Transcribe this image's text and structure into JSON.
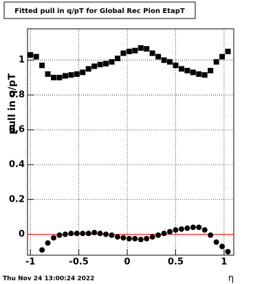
{
  "chart_data": {
    "type": "scatter",
    "title": "Fitted pull in q/pT for Global Rec Pion EtapT",
    "x_label": "η",
    "y_label": "pull in q/pT",
    "timestamp": "Thu Nov 24 13:00:24 2022",
    "x": [
      -1,
      -0.94,
      -0.88,
      -0.82,
      -0.76,
      -0.7,
      -0.64,
      -0.58,
      -0.52,
      -0.46,
      -0.4,
      -0.34,
      -0.28,
      -0.22,
      -0.16,
      -0.1,
      -0.04,
      0.02,
      0.08,
      0.14,
      0.2,
      0.26,
      0.32,
      0.38,
      0.44,
      0.5,
      0.56,
      0.62,
      0.68,
      0.74,
      0.8,
      0.86,
      0.92,
      0.98,
      1.04
    ],
    "series": [
      {
        "marker": "square",
        "color": "#000000",
        "values": [
          1.03,
          1.02,
          0.97,
          0.92,
          0.9,
          0.9,
          0.91,
          0.915,
          0.92,
          0.93,
          0.95,
          0.965,
          0.975,
          0.98,
          0.99,
          1.01,
          1.04,
          1.05,
          1.055,
          1.07,
          1.065,
          1.04,
          1.02,
          1.0,
          0.99,
          0.97,
          0.95,
          0.94,
          0.93,
          0.92,
          0.915,
          0.94,
          0.99,
          1.02,
          1.05
        ]
      },
      {
        "marker": "circle",
        "color": "#000000",
        "values": [
          null,
          null,
          -0.09,
          -0.05,
          -0.02,
          -0.005,
          0.0,
          0.005,
          0.005,
          0.005,
          0.005,
          0.01,
          0.005,
          0.0,
          -0.005,
          -0.015,
          -0.02,
          -0.025,
          -0.025,
          -0.03,
          -0.025,
          -0.015,
          -0.005,
          0.005,
          0.015,
          0.025,
          0.03,
          0.035,
          0.04,
          0.04,
          0.025,
          -0.005,
          -0.045,
          -0.07,
          -0.1
        ]
      }
    ],
    "reference_line": {
      "value": 0,
      "color": "#ff0000"
    },
    "xlim": [
      -1.03,
      1.1
    ],
    "ylim": [
      -0.12,
      1.18
    ],
    "xticks": [
      -1,
      -0.5,
      0,
      0.5,
      1
    ],
    "yticks": [
      0,
      0.2,
      0.4,
      0.6,
      0.8,
      1
    ],
    "grid": true
  }
}
